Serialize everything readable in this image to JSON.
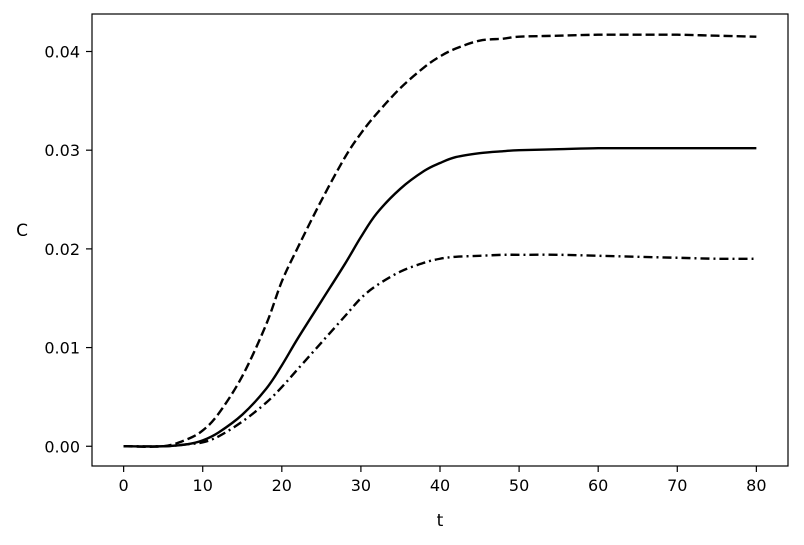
{
  "chart_data": {
    "type": "line",
    "title": "",
    "xlabel": "t",
    "ylabel": "C",
    "xlim": [
      -4,
      84
    ],
    "ylim": [
      -0.002,
      0.0438
    ],
    "grid": false,
    "legend": "none",
    "x_ticks": [
      0,
      10,
      20,
      30,
      40,
      50,
      60,
      70,
      80
    ],
    "x_tick_labels": [
      "0",
      "10",
      "20",
      "30",
      "40",
      "50",
      "60",
      "70",
      "80"
    ],
    "y_ticks": [
      0.0,
      0.01,
      0.02,
      0.03,
      0.04
    ],
    "y_tick_labels": [
      "0.00",
      "0.01",
      "0.02",
      "0.03",
      "0.04"
    ],
    "x": [
      0,
      5,
      8,
      10,
      12,
      15,
      18,
      20,
      22,
      25,
      28,
      30,
      32,
      35,
      38,
      40,
      42,
      45,
      48,
      50,
      55,
      60,
      65,
      70,
      75,
      80
    ],
    "series": [
      {
        "style": "dashed",
        "color": "#000000",
        "values": [
          0.0,
          0.0,
          0.0007,
          0.0016,
          0.0033,
          0.0071,
          0.0123,
          0.0167,
          0.0201,
          0.0249,
          0.0293,
          0.0317,
          0.0337,
          0.0363,
          0.0384,
          0.0395,
          0.0403,
          0.0411,
          0.0413,
          0.0415,
          0.0416,
          0.0417,
          0.0417,
          0.0417,
          0.0416,
          0.0415
        ]
      },
      {
        "style": "solid",
        "color": "#000000",
        "values": [
          0.0,
          0.0,
          0.0002,
          0.0006,
          0.0014,
          0.0032,
          0.0058,
          0.0082,
          0.0109,
          0.0147,
          0.0185,
          0.0212,
          0.0236,
          0.0261,
          0.0279,
          0.0287,
          0.0293,
          0.0297,
          0.0299,
          0.03,
          0.0301,
          0.0302,
          0.0302,
          0.0302,
          0.0302,
          0.0302
        ]
      },
      {
        "style": "dashdot",
        "color": "#000000",
        "values": [
          0.0,
          0.0,
          0.0002,
          0.0004,
          0.001,
          0.0025,
          0.0044,
          0.006,
          0.0078,
          0.0105,
          0.0132,
          0.015,
          0.0163,
          0.0177,
          0.0186,
          0.019,
          0.0192,
          0.0193,
          0.0194,
          0.0194,
          0.0194,
          0.0193,
          0.0192,
          0.0191,
          0.019,
          0.019
        ]
      }
    ]
  }
}
